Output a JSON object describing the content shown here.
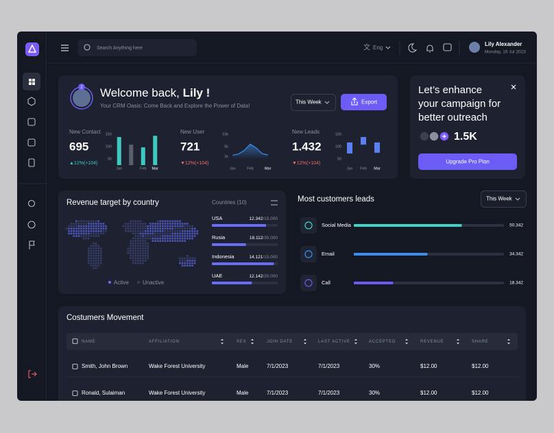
{
  "header": {
    "search_placeholder": "Search Anything here",
    "language": "Eng",
    "user_name": "Lily Alexander",
    "date": "Monday, 16 Jul 2023"
  },
  "welcome": {
    "greeting": "Welcome back, ",
    "name": "Lily !",
    "notification_count": "2",
    "subtitle": "Your CRM Oasis: Come Back and Explore the Power of Data!",
    "period": "This Week",
    "export": "Export"
  },
  "stats": [
    {
      "label": "New Contact",
      "value": "695",
      "change": "▲12%(+104)",
      "trend": "up",
      "chart": {
        "type": "bar",
        "categories": [
          "Jan",
          null,
          "Feb",
          "Mar"
        ],
        "values": [
          139,
          108,
          97,
          144
        ],
        "colors": [
          "#3ec9c0",
          "#5a5f6e",
          "#3ec9c0",
          "#3ec9c0"
        ],
        "ylim": [
          25,
          150
        ],
        "yticks": [
          150,
          100,
          50
        ]
      }
    },
    {
      "label": "New User",
      "value": "721",
      "change": "▼12%(+104)",
      "trend": "down",
      "chart": {
        "type": "area",
        "categories": [
          "Jan",
          null,
          null,
          "Feb",
          null,
          null,
          "Mar"
        ],
        "values": [
          1500,
          2000,
          3500,
          6000,
          4500,
          2200,
          1600
        ],
        "color": "#3b8ef0",
        "ylim": [
          0,
          10000
        ],
        "yticks": [
          {
            "value": 10000,
            "label": "10k"
          },
          {
            "value": 5000,
            "label": "5k"
          },
          {
            "value": 1000,
            "label": "1k"
          }
        ]
      }
    },
    {
      "label": "New Leads",
      "value": "1.432",
      "change": "▼12%(+104)",
      "trend": "down",
      "chart": {
        "type": "range",
        "categories": [
          "Jan",
          "Feb",
          "Mar"
        ],
        "low": [
          72,
          108,
          75
        ],
        "high": [
          117,
          139,
          117
        ],
        "color": "#5b7ff0",
        "ylim": [
          25,
          150
        ],
        "yticks": [
          150,
          100,
          50
        ]
      }
    }
  ],
  "promo": {
    "title_lines": [
      "Let’s enhance",
      "your campaign for",
      "better outreach"
    ],
    "count": "1.5K",
    "button": "Upgrade Pro Plan"
  },
  "revenue": {
    "title": "Revenue target by country",
    "countries_label": "Countries (10)",
    "legend": [
      "Active",
      "Unactive"
    ],
    "countries": [
      {
        "name": "USA",
        "value": 12342,
        "value_label": "12.342",
        "target": 15000,
        "target_label": "/15.000"
      },
      {
        "name": "Rusia",
        "value": 18112,
        "value_label": "18.112",
        "target": 35000,
        "target_label": "/35.000"
      },
      {
        "name": "Indonesia",
        "value": 14121,
        "value_label": "14.121",
        "target": 15000,
        "target_label": "/15.000"
      },
      {
        "name": "UAE",
        "value": 12142,
        "value_label": "12.142",
        "target": 20000,
        "target_label": "/20.000"
      }
    ]
  },
  "leads": {
    "title": "Most customers leads",
    "period": "This Week",
    "xlim": [
      0,
      70000
    ],
    "items": [
      {
        "name": "Social Media",
        "value": 50342,
        "value_label": "50.342",
        "color": "#3fd3c6"
      },
      {
        "name": "Email",
        "value": 34342,
        "value_label": "34.342",
        "color": "#3b8ef0"
      },
      {
        "name": "Call",
        "value": 18342,
        "value_label": "18.342",
        "color": "#6a5cf0"
      }
    ]
  },
  "table": {
    "title": "Costumers Movement",
    "columns": [
      "NAME",
      "AFFILIATION",
      "SEX",
      "JOIN DATE",
      "LAST ACTIVE",
      "ACCEPTED",
      "REVENUE",
      "SHARE"
    ],
    "rows": [
      [
        "Smith, John Brown",
        "Wake Forest University",
        "Male",
        "7/1/2023",
        "7/1/2023",
        "30%",
        "$12.00",
        "$12.00"
      ],
      [
        "Ronald, Sulaiman",
        "Wake Forest University",
        "Male",
        "7/1/2023",
        "7/1/2023",
        "30%",
        "$12.00",
        "$12.00"
      ]
    ]
  }
}
